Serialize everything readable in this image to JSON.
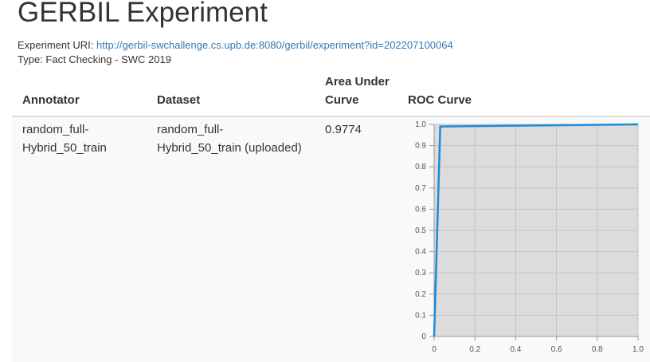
{
  "page": {
    "title": "GERBIL Experiment",
    "uri_label": "Experiment URI:",
    "uri_value": "http://gerbil-swchallenge.cs.upb.de:8080/gerbil/experiment?id=202207100064",
    "type_label": "Type:",
    "type_value": "Fact Checking - SWC 2019"
  },
  "table": {
    "headers": {
      "annotator": "Annotator",
      "dataset": "Dataset",
      "auc_line1": "Area Under",
      "auc_line2": "Curve",
      "roc": "ROC Curve"
    },
    "rows": [
      {
        "annotator_line1": "random_full-",
        "annotator_line2": "Hybrid_50_train",
        "dataset_line1": "random_full-",
        "dataset_line2": "Hybrid_50_train (uploaded)",
        "auc": "0.9774"
      }
    ]
  },
  "colors": {
    "link": "#337ab7",
    "plot_background": "#dcdcdc",
    "curve": "#1f8ad8",
    "grid": "#c4c4c4"
  },
  "chart_data": {
    "type": "line",
    "title": "",
    "xlabel": "",
    "ylabel": "",
    "xlim": [
      0,
      1.0
    ],
    "ylim": [
      0,
      1.0
    ],
    "x_ticks": [
      "0",
      "0.2",
      "0.4",
      "0.6",
      "0.8",
      "1.0"
    ],
    "y_ticks": [
      "0",
      "0.1",
      "0.2",
      "0.3",
      "0.4",
      "0.5",
      "0.6",
      "0.7",
      "0.8",
      "0.9",
      "1.0"
    ],
    "grid": true,
    "series": [
      {
        "x": [
          0,
          0.03,
          1.0
        ],
        "y": [
          0,
          0.99,
          1.0
        ]
      }
    ]
  }
}
